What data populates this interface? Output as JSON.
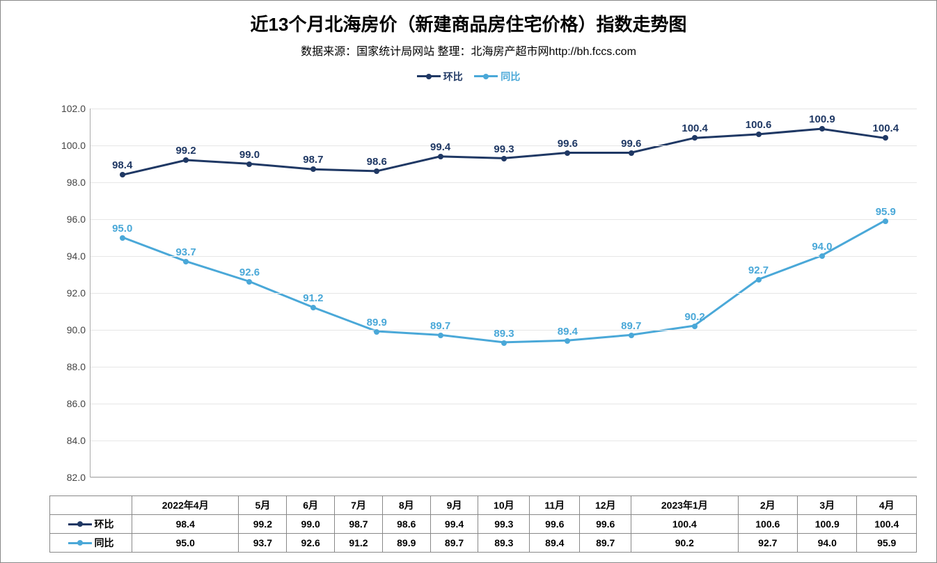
{
  "chart": {
    "title": "近13个月北海房价（新建商品房住宅价格）指数走势图",
    "title_fontsize": 26,
    "subtitle": "数据来源：国家统计局网站    整理：北海房产超市网http://bh.fccs.com",
    "subtitle_fontsize": 16,
    "type": "line",
    "background_color": "#ffffff",
    "grid_color": "#e6e6e6",
    "axis_color": "#aaaaaa",
    "categories": [
      "2022年4月",
      "5月",
      "6月",
      "7月",
      "8月",
      "9月",
      "10月",
      "11月",
      "12月",
      "2023年1月",
      "2月",
      "3月",
      "4月"
    ],
    "ylim": [
      82.0,
      102.0
    ],
    "ytick_step": 2.0,
    "yticks": [
      "82.0",
      "84.0",
      "86.0",
      "88.0",
      "90.0",
      "92.0",
      "94.0",
      "96.0",
      "98.0",
      "100.0",
      "102.0"
    ],
    "tick_fontsize": 14,
    "label_fontsize": 14,
    "data_label_fontsize": 15,
    "line_width": 3,
    "marker_size": 8,
    "series": [
      {
        "name": "环比",
        "color": "#1f3864",
        "values": [
          98.4,
          99.2,
          99.0,
          98.7,
          98.6,
          99.4,
          99.3,
          99.6,
          99.6,
          100.4,
          100.6,
          100.9,
          100.4
        ],
        "label_offset_y": -22
      },
      {
        "name": "同比",
        "color": "#4aa8d8",
        "values": [
          95.0,
          93.7,
          92.6,
          91.2,
          89.9,
          89.7,
          89.3,
          89.4,
          89.7,
          90.2,
          92.7,
          94.0,
          95.9
        ],
        "label_offset_y": -22
      }
    ]
  }
}
